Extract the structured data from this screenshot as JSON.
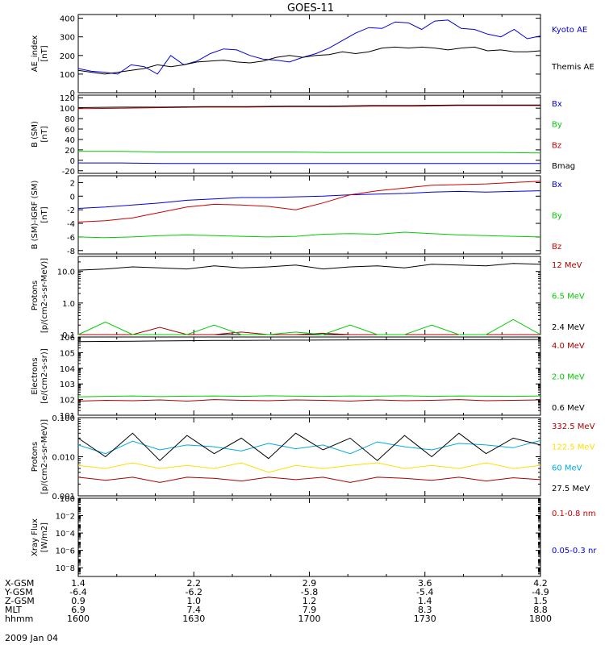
{
  "title": "GOES-11",
  "date": "2009 Jan 04",
  "colors": {
    "black": "#000000",
    "blue": "#0000dd",
    "green": "#00cc00",
    "red": "#cc0000",
    "darkred": "#aa0000",
    "yellow": "#ffdd00",
    "cyan": "#00aadd",
    "orange": "#ffcc00"
  },
  "orbit": {
    "labels": [
      "X-GSM",
      "Y-GSM",
      "Z-GSM",
      "MLT",
      "hhmm"
    ],
    "ticks": [
      {
        "xgsm": "1.4",
        "ygsm": "-6.4",
        "zgsm": "0.9",
        "mlt": "6.9",
        "hhmm": "1600"
      },
      {
        "xgsm": "2.2",
        "ygsm": "-6.2",
        "zgsm": "1.0",
        "mlt": "7.4",
        "hhmm": "1630"
      },
      {
        "xgsm": "2.9",
        "ygsm": "-5.8",
        "zgsm": "1.2",
        "mlt": "7.9",
        "hhmm": "1700"
      },
      {
        "xgsm": "3.6",
        "ygsm": "-5.4",
        "zgsm": "1.4",
        "mlt": "8.3",
        "hhmm": "1730"
      },
      {
        "xgsm": "4.2",
        "ygsm": "-4.9",
        "zgsm": "1.5",
        "mlt": "8.8",
        "hhmm": "1800"
      }
    ]
  },
  "chart_data": [
    {
      "type": "line",
      "ylabel": "AE_index\n[nT]",
      "ylim": [
        0,
        420
      ],
      "yticks": [
        "0",
        "100",
        "200",
        "300",
        "400"
      ],
      "series": [
        {
          "name": "Kyoto AE",
          "color": "#0000dd",
          "values": [
            130,
            115,
            110,
            100,
            150,
            140,
            100,
            200,
            150,
            170,
            210,
            235,
            230,
            200,
            180,
            175,
            165,
            190,
            210,
            240,
            280,
            320,
            350,
            345,
            380,
            375,
            340,
            385,
            390,
            345,
            340,
            315,
            300,
            340,
            290,
            305
          ]
        },
        {
          "name": "Themis AE",
          "color": "#000000",
          "values": [
            120,
            110,
            100,
            110,
            120,
            130,
            150,
            140,
            150,
            165,
            170,
            175,
            165,
            160,
            170,
            190,
            200,
            190,
            200,
            205,
            220,
            210,
            220,
            240,
            245,
            240,
            245,
            240,
            230,
            240,
            245,
            225,
            230,
            220,
            220,
            225
          ]
        }
      ]
    },
    {
      "type": "line",
      "ylabel": "B (SM)\n[nT]",
      "ylim": [
        -25,
        125
      ],
      "yticks": [
        "-20",
        "0",
        "20",
        "40",
        "60",
        "80",
        "100",
        "120"
      ],
      "series": [
        {
          "name": "Bx",
          "color": "#0000dd",
          "values": [
            -5,
            -5,
            -6,
            -6,
            -6,
            -6,
            -6,
            -6,
            -6,
            -6,
            -6,
            -6
          ]
        },
        {
          "name": "By",
          "color": "#00cc00",
          "values": [
            17,
            17,
            16,
            16,
            16,
            16,
            15,
            15,
            15,
            15,
            15,
            14
          ]
        },
        {
          "name": "Bz",
          "color": "#cc0000",
          "values": [
            99,
            100,
            101,
            102,
            102,
            103,
            103,
            104,
            104,
            105,
            105,
            105
          ]
        },
        {
          "name": "Bmag",
          "color": "#000000",
          "values": [
            101,
            102,
            102,
            103,
            103,
            104,
            104,
            105,
            105,
            106,
            106,
            106
          ]
        }
      ]
    },
    {
      "type": "line",
      "ylabel": "B (SM)-IGRF (SM)\n[nT]",
      "ylim": [
        -8.5,
        3
      ],
      "yticks": [
        "-8",
        "-6",
        "-4",
        "-2",
        "0",
        "2"
      ],
      "series": [
        {
          "name": "Bx",
          "color": "#0000dd",
          "values": [
            -1.8,
            -1.6,
            -1.3,
            -1.0,
            -0.6,
            -0.4,
            -0.2,
            -0.2,
            -0.1,
            0.0,
            0.2,
            0.3,
            0.4,
            0.6,
            0.7,
            0.6,
            0.7,
            0.8
          ]
        },
        {
          "name": "By",
          "color": "#00cc00",
          "values": [
            -6.0,
            -6.1,
            -6.0,
            -5.8,
            -5.7,
            -5.8,
            -5.9,
            -6.0,
            -5.9,
            -5.6,
            -5.5,
            -5.6,
            -5.3,
            -5.5,
            -5.7,
            -5.8,
            -5.9,
            -6.0
          ]
        },
        {
          "name": "Bz",
          "color": "#cc0000",
          "values": [
            -3.8,
            -3.6,
            -3.2,
            -2.4,
            -1.6,
            -1.2,
            -1.3,
            -1.5,
            -2.0,
            -1.0,
            0.2,
            0.8,
            1.2,
            1.6,
            1.7,
            1.8,
            2.0,
            2.2
          ]
        }
      ]
    },
    {
      "type": "line",
      "ylabel": "Protons\n[p/(cm2-s-sr-MeV)]",
      "yscale": "log",
      "ylim": [
        0.1,
        30
      ],
      "yticks": [
        "0.1",
        "1.0",
        "10.0"
      ],
      "series": [
        {
          "name": "12 MeV",
          "color": "#aa0000",
          "values": [
            0.1,
            0.1,
            0.1,
            0.17,
            0.1,
            0.1,
            0.12,
            0.1,
            0.1,
            0.11,
            0.1,
            0.1,
            0.1,
            0.1,
            0.1,
            0.1,
            0.1,
            0.1
          ]
        },
        {
          "name": "6.5 MeV",
          "color": "#00cc00",
          "values": [
            0.1,
            0.25,
            0.1,
            0.1,
            0.1,
            0.2,
            0.1,
            0.1,
            0.12,
            0.1,
            0.2,
            0.1,
            0.1,
            0.2,
            0.1,
            0.1,
            0.3,
            0.1
          ]
        },
        {
          "name": "2.4 MeV",
          "color": "#000000",
          "values": [
            11,
            12,
            14,
            13,
            12,
            15,
            13,
            14,
            16,
            12,
            14,
            15,
            13,
            17,
            16,
            15,
            18,
            17
          ]
        }
      ]
    },
    {
      "type": "line",
      "ylabel": "Electrons\n[e/(cm2-s-sr)]",
      "yscale": "log",
      "ylim": [
        10,
        1000000
      ],
      "yticks": [
        "10^1",
        "10^2",
        "10^3",
        "10^4",
        "10^5",
        "10^6"
      ],
      "series": [
        {
          "name": "4.0 MeV",
          "color": "#aa0000",
          "values": [
            80,
            90,
            85,
            95,
            80,
            100,
            90,
            85,
            95,
            90,
            80,
            95,
            85,
            90,
            100,
            85,
            90,
            95
          ]
        },
        {
          "name": "2.0 MeV",
          "color": "#00cc00",
          "values": [
            150,
            160,
            170,
            155,
            165,
            170,
            160,
            175,
            165,
            160,
            170,
            165,
            175,
            160,
            170,
            165,
            160,
            170
          ]
        },
        {
          "name": "0.6 MeV",
          "color": "#000000",
          "values": [
            500000,
            520000,
            540000,
            560000,
            580000,
            600000,
            610000,
            620000,
            630000,
            640000,
            650000,
            660000,
            670000,
            670000,
            680000,
            680000,
            690000,
            700000
          ]
        }
      ]
    },
    {
      "type": "line",
      "ylabel": "Protons\n[p/(cm2-s-sr-MeV)]",
      "yscale": "log",
      "ylim": [
        0.001,
        0.1
      ],
      "yticks": [
        "0.001",
        "0.010",
        "0.100"
      ],
      "series": [
        {
          "name": "332.5 MeV",
          "color": "#aa0000",
          "values": [
            0.003,
            0.0025,
            0.003,
            0.0022,
            0.003,
            0.0028,
            0.0024,
            0.003,
            0.0026,
            0.003,
            0.0022,
            0.003,
            0.0028,
            0.0025,
            0.003,
            0.0024,
            0.0029,
            0.0026
          ]
        },
        {
          "name": "122.5 MeV",
          "color": "#ffdd00",
          "values": [
            0.006,
            0.005,
            0.007,
            0.005,
            0.006,
            0.005,
            0.007,
            0.004,
            0.006,
            0.005,
            0.006,
            0.007,
            0.005,
            0.006,
            0.005,
            0.007,
            0.005,
            0.006
          ]
        },
        {
          "name": "60 MeV",
          "color": "#00aadd",
          "values": [
            0.02,
            0.012,
            0.025,
            0.015,
            0.02,
            0.018,
            0.014,
            0.022,
            0.016,
            0.02,
            0.012,
            0.024,
            0.018,
            0.015,
            0.022,
            0.02,
            0.017,
            0.026
          ]
        },
        {
          "name": "27.5 MeV",
          "color": "#000000",
          "values": [
            0.03,
            0.01,
            0.04,
            0.008,
            0.035,
            0.012,
            0.03,
            0.009,
            0.04,
            0.015,
            0.03,
            0.008,
            0.035,
            0.01,
            0.04,
            0.012,
            0.03,
            0.02
          ]
        }
      ]
    },
    {
      "type": "line",
      "ylabel": "Xray Flux\n[W/m2]",
      "yscale": "log",
      "ylim": [
        1e-09,
        1
      ],
      "yticks": [
        "10^-8",
        "10^-6",
        "10^-4",
        "10^-2",
        "10^0"
      ],
      "series": [
        {
          "name": "0.1-0.8 nm",
          "color": "#cc0000",
          "values": []
        },
        {
          "name": "0.05-0.3 nr",
          "color": "#0000dd",
          "values": []
        }
      ]
    }
  ]
}
